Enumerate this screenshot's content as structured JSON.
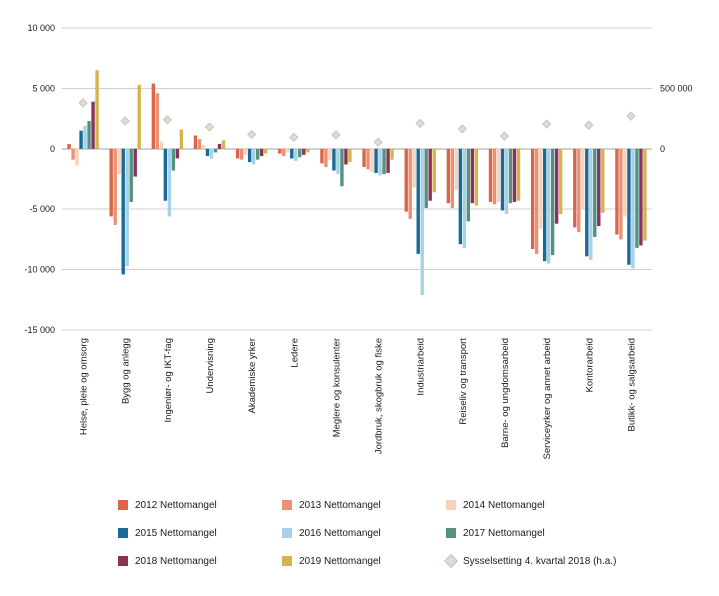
{
  "chart_data": {
    "type": "bar",
    "title": "",
    "xlabel": "",
    "ylabel": "",
    "grid": true,
    "legend_position": "bottom",
    "categories": [
      "Helse, pleie og omsorg",
      "Bygg og anlegg",
      "Ingeniør- og IKT-fag",
      "Undervisning",
      "Akademiske yrker",
      "Ledere",
      "Meglere og konsulenter",
      "Jordbruk, skogbruk og fiske",
      "Industriarbeid",
      "Reiseliv og transport",
      "Barne- og ungdomsarbeid",
      "Serviceyrker og annet arbeid",
      "Kontorarbeid",
      "Butikk- og salgsarbeid"
    ],
    "series": [
      {
        "name": "2012 Nettomangel",
        "color": "#d9664a",
        "values": [
          400,
          -5600,
          5400,
          1100,
          -800,
          -400,
          -1200,
          -1500,
          -5200,
          -4500,
          -4400,
          -8300,
          -6500,
          -7100
        ]
      },
      {
        "name": "2013 Nettomangel",
        "color": "#e99273",
        "values": [
          -900,
          -6300,
          4600,
          800,
          -900,
          -600,
          -1500,
          -1700,
          -5800,
          -4900,
          -4600,
          -8700,
          -6900,
          -7500
        ]
      },
      {
        "name": "2014 Nettomangel",
        "color": "#f7d3bd",
        "values": [
          -1400,
          -2100,
          600,
          300,
          -500,
          -300,
          -900,
          -1900,
          -3200,
          -3400,
          -4400,
          -6600,
          -5000,
          -5600
        ]
      },
      {
        "name": "2015 Nettomangel",
        "color": "#1d6996",
        "values": [
          1500,
          -10400,
          -4300,
          -600,
          -1100,
          -800,
          -1800,
          -2000,
          -8700,
          -7900,
          -5100,
          -9300,
          -8900,
          -9600
        ]
      },
      {
        "name": "2016 Nettomangel",
        "color": "#a5d2e6",
        "values": [
          1900,
          -9700,
          -5600,
          -800,
          -1300,
          -1000,
          -2100,
          -2200,
          -12100,
          -8200,
          -5400,
          -9500,
          -9200,
          -9900
        ]
      },
      {
        "name": "2017 Nettomangel",
        "color": "#55917e",
        "values": [
          2300,
          -4400,
          -1800,
          -300,
          -900,
          -700,
          -3100,
          -2100,
          -4900,
          -6000,
          -4500,
          -8800,
          -7300,
          -8200
        ]
      },
      {
        "name": "2018 Nettomangel",
        "color": "#8a3359",
        "values": [
          3900,
          -2300,
          -800,
          400,
          -600,
          -500,
          -1300,
          -2000,
          -4300,
          -4500,
          -4400,
          -6200,
          -6400,
          -8000
        ]
      },
      {
        "name": "2019 Nettomangel",
        "color": "#d6b34c",
        "values": [
          6500,
          5300,
          1600,
          700,
          -400,
          -300,
          -1100,
          -900,
          -3600,
          -4700,
          -4300,
          -5400,
          -5300,
          -7600
        ]
      }
    ],
    "scatter_series": {
      "name": "Sysselsetting 4. kvartal 2018 (h.a.)",
      "color": "#dcdcd4",
      "stroke": "#c6c6bc",
      "axis": "right",
      "values": [
        380000,
        230000,
        240000,
        180000,
        120000,
        95000,
        115000,
        55000,
        210000,
        165000,
        105000,
        205000,
        195000,
        270000
      ]
    },
    "left_axis": {
      "min": -15000,
      "max": 10000,
      "step": 5000,
      "ticks": [
        {
          "value": 10000,
          "label": "10 000"
        },
        {
          "value": 5000,
          "label": "5 000"
        },
        {
          "value": 0,
          "label": "0"
        },
        {
          "value": -5000,
          "label": "-5 000"
        },
        {
          "value": -10000,
          "label": "-10 000"
        },
        {
          "value": -15000,
          "label": "-15 000"
        }
      ]
    },
    "right_axis": {
      "left_units_per_right_unit": 0.01,
      "ticks": [
        {
          "left_value": 5000,
          "label": "500 000"
        },
        {
          "left_value": 0,
          "label": "0"
        }
      ]
    },
    "style": {
      "grid_line": "#cfcfcb",
      "zero_line": "#a0a09b"
    }
  }
}
